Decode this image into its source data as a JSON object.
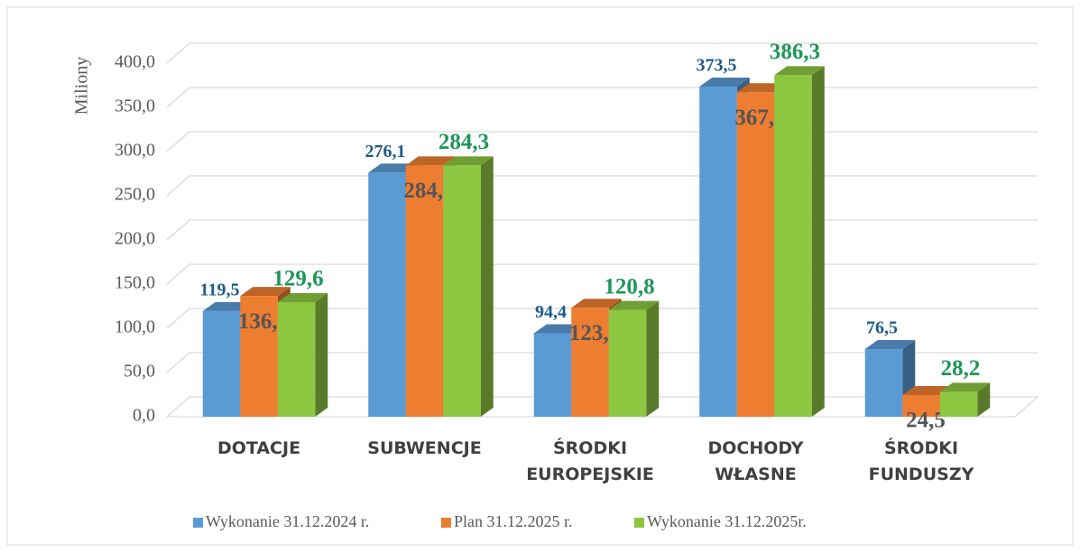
{
  "chart_data": {
    "type": "bar3d",
    "y_label": "Miliony",
    "categories": [
      "DOTACJE",
      "SUBWENCJE",
      "ŚRODKI EUROPEJSKIE",
      "DOCHODY WŁASNE",
      "ŚRODKI FUNDUSZY"
    ],
    "series": [
      {
        "name": "Wykonanie 31.12.2024 r.",
        "color": "#5b9bd5",
        "label_color": "#1f5a8a",
        "values": [
          119.5,
          276.1,
          94.4,
          373.5,
          76.5
        ],
        "value_labels": [
          "119,5",
          "276,1",
          "94,4",
          "373,5",
          "76,5"
        ]
      },
      {
        "name": "Plan 31.12.2025 r.",
        "color": "#ed7d31",
        "label_color": "#555555",
        "values": [
          136.6,
          284.3,
          123.2,
          367.1,
          24.5
        ],
        "value_labels": [
          "136,6",
          "284,3",
          "123,2",
          "367,1",
          "24,5"
        ]
      },
      {
        "name": "Wykonanie 31.12.2025r.",
        "color": "#8dc641",
        "label_color": "#1e9658",
        "values": [
          129.6,
          284.3,
          120.8,
          386.3,
          28.2
        ],
        "value_labels": [
          "129,6",
          "284,3",
          "120,8",
          "386,3",
          "28,2"
        ]
      }
    ],
    "ylim": [
      0,
      400
    ],
    "yticks": [
      {
        "value": 0,
        "label": "0,0"
      },
      {
        "value": 50,
        "label": "50,0"
      },
      {
        "value": 100,
        "label": "100,0"
      },
      {
        "value": 150,
        "label": "150,0"
      },
      {
        "value": 200,
        "label": "200,0"
      },
      {
        "value": 250,
        "label": "250,0"
      },
      {
        "value": 300,
        "label": "300,0"
      },
      {
        "value": 350,
        "label": "350,0"
      },
      {
        "value": 400,
        "label": "400,0"
      }
    ],
    "grid": true,
    "legend": "bottom"
  }
}
